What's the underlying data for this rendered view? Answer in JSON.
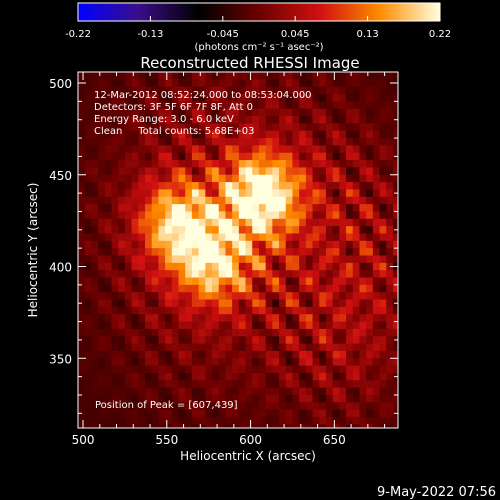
{
  "colorbar": {
    "ticks": [
      "-0.22",
      "-0.13",
      "-0.045",
      "0.045",
      "0.13",
      "0.22"
    ],
    "range": [
      -0.22,
      0.22
    ],
    "unit_label": "(photons cm⁻² s⁻¹ asec⁻²)",
    "colors": [
      "#0000ff",
      "#3a0d8a",
      "#000000",
      "#6b0000",
      "#d01010",
      "#ff8c00",
      "#ffffe0"
    ]
  },
  "plot": {
    "title": "Reconstructed RHESSI Image",
    "xlabel": "Heliocentric X (arcsec)",
    "ylabel": "Heliocentric Y (arcsec)",
    "info_lines": [
      "12-Mar-2012 08:52:24.000 to 08:53:04.000",
      "Detectors: 3F 5F 6F 7F 8F, Att 0",
      "Energy Range: 3.0 - 6.0 keV",
      "Clean     Total counts: 5.68E+03"
    ],
    "peak_label": "Position of Peak = [607,439]",
    "footer_date": "9-May-2022 07:56"
  },
  "chart_data": {
    "type": "heatmap",
    "title": "Reconstructed RHESSI Image",
    "xlabel": "Heliocentric X (arcsec)",
    "ylabel": "Heliocentric Y (arcsec)",
    "xlim": [
      497,
      688
    ],
    "ylim": [
      312,
      506
    ],
    "xticks": [
      500,
      550,
      600,
      650
    ],
    "yticks": [
      350,
      400,
      450,
      500
    ],
    "colorbar_range": [
      -0.22,
      0.22
    ],
    "peak_position": [
      607,
      439
    ],
    "sources": [
      {
        "x": 607,
        "y": 439,
        "peak": 0.22
      },
      {
        "x": 556,
        "y": 424,
        "peak": 0.17
      },
      {
        "x": 578,
        "y": 402,
        "peak": 0.16
      }
    ]
  }
}
